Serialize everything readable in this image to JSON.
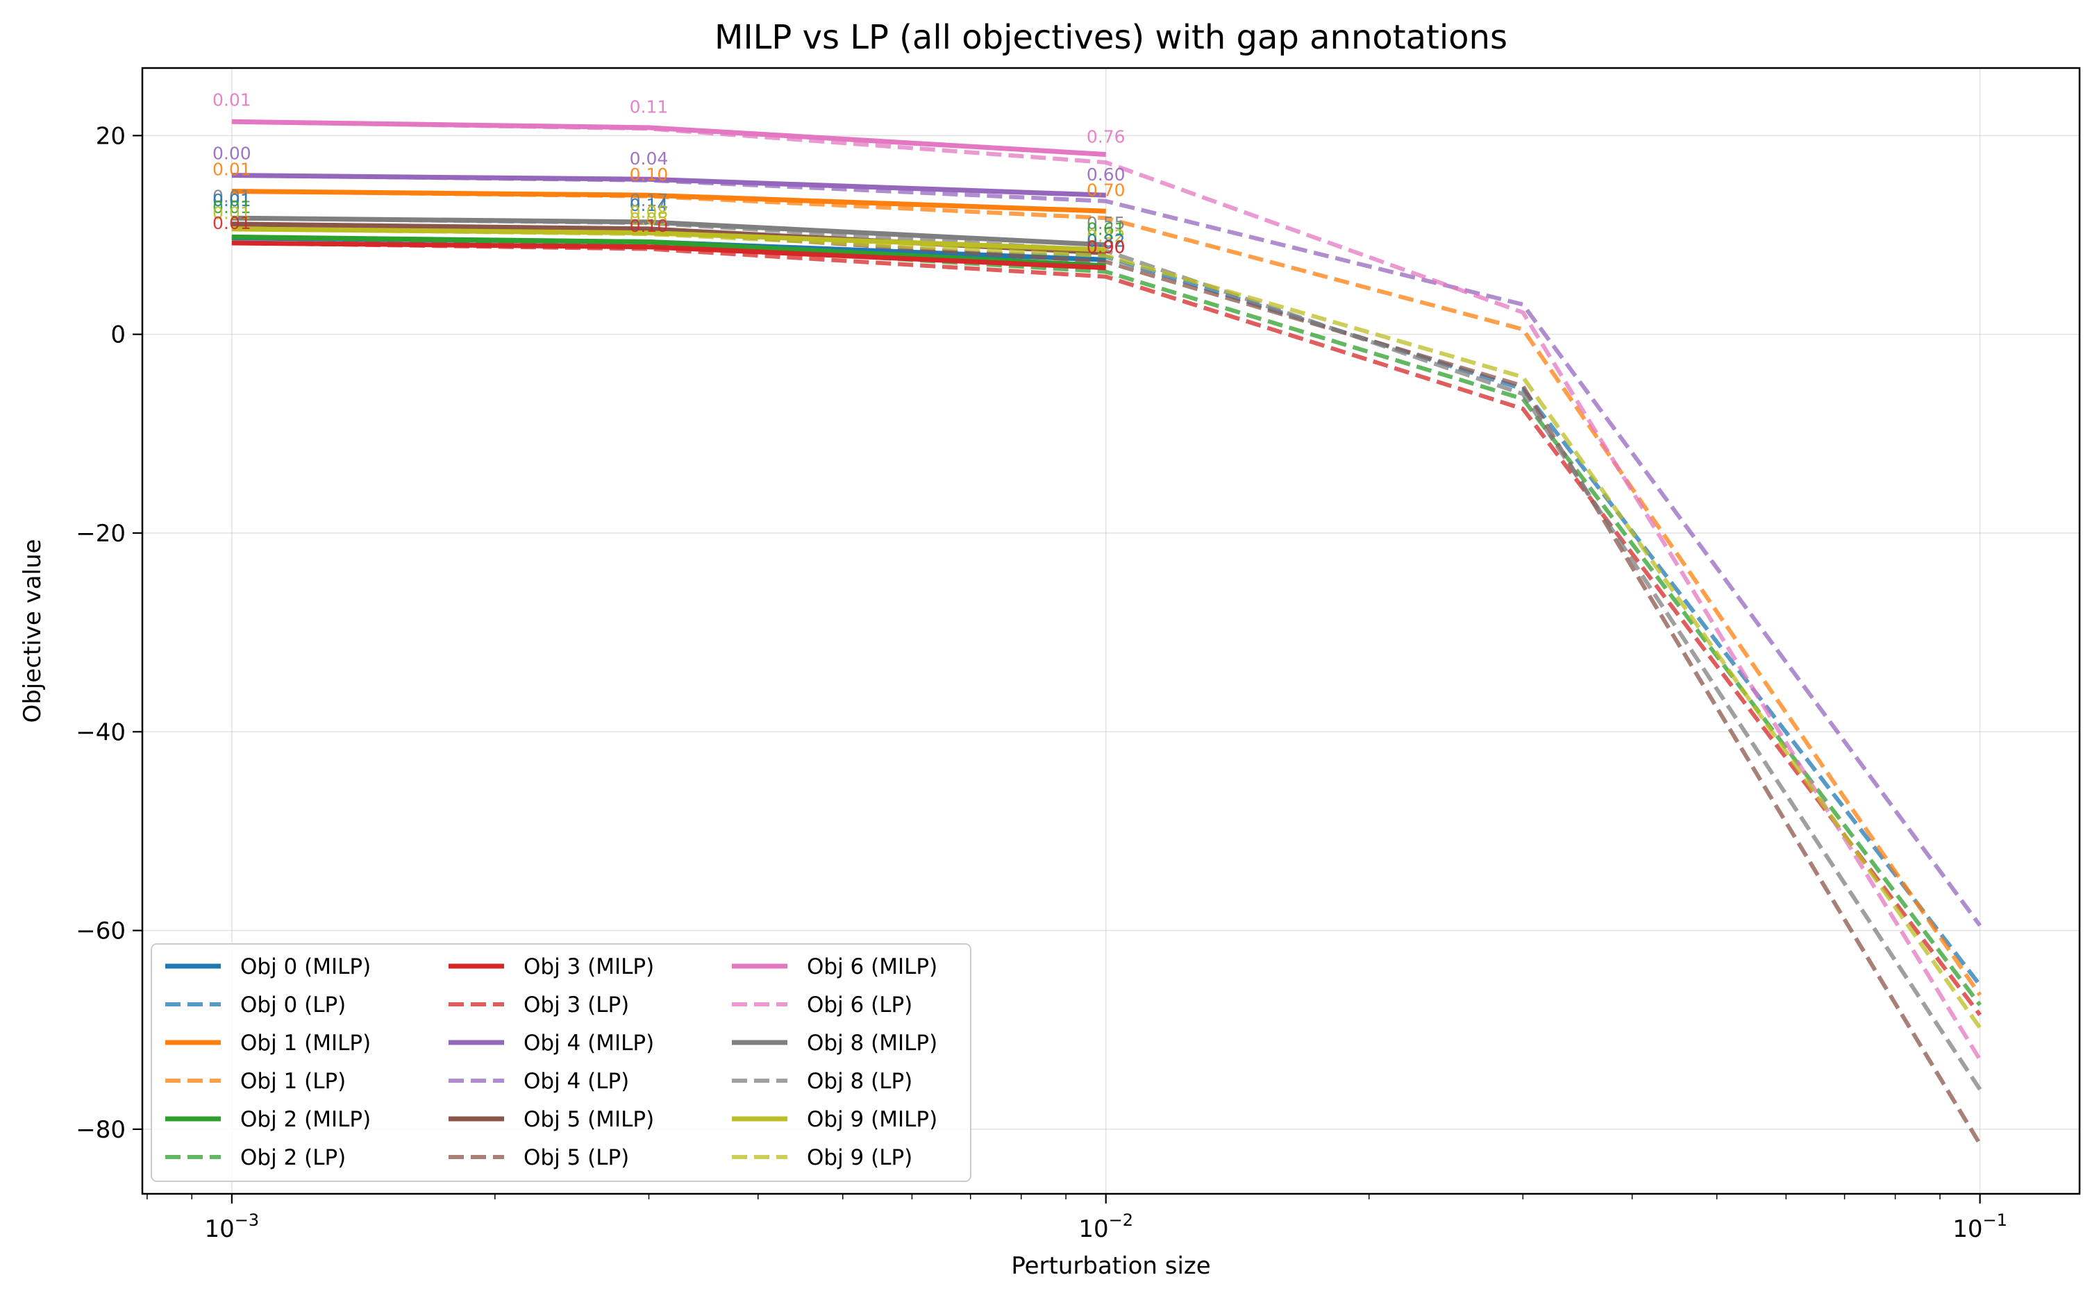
{
  "chart_data": {
    "type": "line",
    "title": "MILP vs LP (all objectives) with gap annotations",
    "xlabel": "Perturbation size",
    "ylabel": "Objective value",
    "xscale": "log",
    "xlim": [
      0.00079,
      0.13
    ],
    "ylim": [
      -86.5,
      26.8
    ],
    "grid": true,
    "legend_position": "lower-left",
    "legend_columns": 3,
    "x_ticks": [
      {
        "value": 0.001,
        "label_base": "10",
        "label_exp": "−3"
      },
      {
        "value": 0.01,
        "label_base": "10",
        "label_exp": "−2"
      },
      {
        "value": 0.1,
        "label_base": "10",
        "label_exp": "−1"
      }
    ],
    "y_ticks": [
      {
        "value": 20,
        "label": "20"
      },
      {
        "value": 0,
        "label": "0"
      },
      {
        "value": -20,
        "label": "−20"
      },
      {
        "value": -40,
        "label": "−40"
      },
      {
        "value": -60,
        "label": "−60"
      },
      {
        "value": -80,
        "label": "−80"
      }
    ],
    "milp_x": [
      0.001,
      0.003,
      0.01
    ],
    "lp_x": [
      0.001,
      0.003,
      0.01,
      0.03,
      0.1
    ],
    "series": [
      {
        "name": "Obj 0 (MILP)",
        "kind": "MILP",
        "color": "#1f77b4",
        "values": [
          9.7,
          9.3,
          7.5
        ]
      },
      {
        "name": "Obj 0 (LP)",
        "kind": "LP",
        "color": "#1f77b4",
        "values": [
          9.7,
          9.1,
          7.8,
          -5.5,
          -65.5
        ]
      },
      {
        "name": "Obj 1 (MILP)",
        "kind": "MILP",
        "color": "#ff7f0e",
        "values": [
          14.4,
          14.0,
          12.4
        ]
      },
      {
        "name": "Obj 1 (LP)",
        "kind": "LP",
        "color": "#ff7f0e",
        "values": [
          14.4,
          13.9,
          11.7,
          0.5,
          -66.5
        ]
      },
      {
        "name": "Obj 2 (MILP)",
        "kind": "MILP",
        "color": "#2ca02c",
        "values": [
          9.8,
          9.3,
          6.9
        ]
      },
      {
        "name": "Obj 2 (LP)",
        "kind": "LP",
        "color": "#2ca02c",
        "values": [
          9.8,
          9.1,
          6.3,
          -6.5,
          -67.5
        ]
      },
      {
        "name": "Obj 3 (MILP)",
        "kind": "MILP",
        "color": "#d62728",
        "values": [
          9.2,
          8.8,
          6.7
        ]
      },
      {
        "name": "Obj 3 (LP)",
        "kind": "LP",
        "color": "#d62728",
        "values": [
          9.2,
          8.6,
          5.8,
          -7.5,
          -68.5
        ]
      },
      {
        "name": "Obj 4 (MILP)",
        "kind": "MILP",
        "color": "#9467bd",
        "values": [
          16.0,
          15.6,
          14.0
        ]
      },
      {
        "name": "Obj 4 (LP)",
        "kind": "LP",
        "color": "#9467bd",
        "values": [
          16.0,
          15.5,
          13.4,
          3.0,
          -59.5
        ]
      },
      {
        "name": "Obj 5 (MILP)",
        "kind": "MILP",
        "color": "#8c564b",
        "values": [
          11.1,
          10.6,
          8.2
        ]
      },
      {
        "name": "Obj 5 (LP)",
        "kind": "LP",
        "color": "#8c564b",
        "values": [
          11.1,
          10.4,
          7.3,
          -5.2,
          -81.5
        ]
      },
      {
        "name": "Obj 6 (MILP)",
        "kind": "MILP",
        "color": "#e377c2",
        "values": [
          21.4,
          20.8,
          18.1
        ]
      },
      {
        "name": "Obj 6 (LP)",
        "kind": "LP",
        "color": "#e377c2",
        "values": [
          21.4,
          20.7,
          17.3,
          2.2,
          -73.0
        ]
      },
      {
        "name": "Obj 8 (MILP)",
        "kind": "MILP",
        "color": "#7f7f7f",
        "values": [
          11.7,
          11.3,
          9.0
        ]
      },
      {
        "name": "Obj 8 (LP)",
        "kind": "LP",
        "color": "#7f7f7f",
        "values": [
          11.7,
          11.2,
          8.4,
          -6.0,
          -76.0
        ]
      },
      {
        "name": "Obj 9 (MILP)",
        "kind": "MILP",
        "color": "#bcbd22",
        "values": [
          10.6,
          10.2,
          8.5
        ]
      },
      {
        "name": "Obj 9 (LP)",
        "kind": "LP",
        "color": "#bcbd22",
        "values": [
          10.6,
          10.1,
          7.9,
          -4.3,
          -69.8
        ]
      }
    ],
    "annotations": [
      {
        "text": "0.01",
        "color": "#e377c2",
        "x": 0.001,
        "y": 23.0
      },
      {
        "text": "0.11",
        "color": "#e377c2",
        "x": 0.003,
        "y": 22.3
      },
      {
        "text": "0.76",
        "color": "#e377c2",
        "x": 0.01,
        "y": 19.3
      },
      {
        "text": "0.00",
        "color": "#9467bd",
        "x": 0.001,
        "y": 17.6
      },
      {
        "text": "0.04",
        "color": "#9467bd",
        "x": 0.003,
        "y": 17.1
      },
      {
        "text": "0.60",
        "color": "#9467bd",
        "x": 0.01,
        "y": 15.5
      },
      {
        "text": "0.01",
        "color": "#ff7f0e",
        "x": 0.001,
        "y": 16.0
      },
      {
        "text": "0.10",
        "color": "#ff7f0e",
        "x": 0.003,
        "y": 15.5
      },
      {
        "text": "0.70",
        "color": "#ff7f0e",
        "x": 0.01,
        "y": 13.9
      },
      {
        "text": "0.01",
        "color": "#7f7f7f",
        "x": 0.001,
        "y": 13.3
      },
      {
        "text": "0.17",
        "color": "#7f7f7f",
        "x": 0.003,
        "y": 12.9
      },
      {
        "text": "0.55",
        "color": "#7f7f7f",
        "x": 0.01,
        "y": 10.6
      },
      {
        "text": "0.01",
        "color": "#1f77b4",
        "x": 0.001,
        "y": 12.9
      },
      {
        "text": "0.14",
        "color": "#1f77b4",
        "x": 0.003,
        "y": 12.4
      },
      {
        "text": "0.61",
        "color": "#2ca02c",
        "x": 0.01,
        "y": 10.0
      },
      {
        "text": "0.01",
        "color": "#2ca02c",
        "x": 0.001,
        "y": 12.2
      },
      {
        "text": "0.08",
        "color": "#bcbd22",
        "x": 0.003,
        "y": 11.7
      },
      {
        "text": "0.42",
        "color": "#bcbd22",
        "x": 0.01,
        "y": 9.3
      },
      {
        "text": "0.01",
        "color": "#bcbd22",
        "x": 0.001,
        "y": 11.6
      },
      {
        "text": "0.05",
        "color": "#bcbd22",
        "x": 0.003,
        "y": 11.0
      },
      {
        "text": "0.82",
        "color": "#1f77b4",
        "x": 0.01,
        "y": 8.8
      },
      {
        "text": "0.01",
        "color": "#d62728",
        "x": 0.001,
        "y": 10.6
      },
      {
        "text": "0.10",
        "color": "#d62728",
        "x": 0.003,
        "y": 10.3
      },
      {
        "text": "0.90",
        "color": "#8c564b",
        "x": 0.01,
        "y": 8.2
      },
      {
        "text": "0.90",
        "color": "#d62728",
        "x": 0.01,
        "y": 8.2
      }
    ]
  }
}
